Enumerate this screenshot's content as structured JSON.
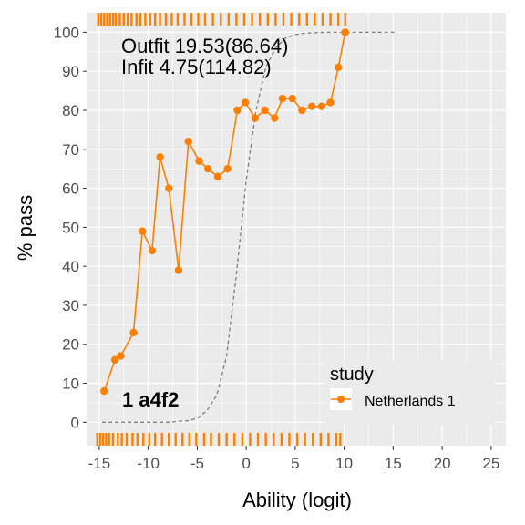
{
  "chart_data": {
    "type": "line",
    "xlabel": "Ability (logit)",
    "ylabel": "% pass",
    "xlim": [
      -16.2,
      26.5
    ],
    "ylim": [
      -6,
      105
    ],
    "x_ticks": [
      -15,
      -10,
      -5,
      0,
      5,
      10,
      15,
      20,
      25
    ],
    "x_tick_labels": [
      "-15",
      "-10",
      "-5",
      "0",
      "5",
      "10",
      "15",
      "20",
      "25"
    ],
    "y_ticks": [
      0,
      10,
      20,
      30,
      40,
      50,
      60,
      70,
      80,
      90,
      100
    ],
    "y_tick_labels": [
      "0",
      "10",
      "20",
      "30",
      "40",
      "50",
      "60",
      "70",
      "80",
      "90",
      "100"
    ],
    "grid": true,
    "legend_title": "study",
    "legend_position": "right",
    "annotations": {
      "outfit": "Outfit 19.53(86.64)",
      "infit": "Infit  4.75(114.82)",
      "item": "1  a4f2"
    },
    "colors": {
      "series": "#FF7F00",
      "panel": "#EBEBEB",
      "grid": "#FFFFFF",
      "model_curve": "#7F7F7F"
    },
    "series": [
      {
        "name": "Netherlands 1",
        "x": [
          -14.5,
          -13.4,
          -12.8,
          -11.5,
          -10.6,
          -9.6,
          -8.8,
          -7.9,
          -6.9,
          -5.9,
          -4.8,
          -3.9,
          -2.9,
          -1.9,
          -0.9,
          -0.1,
          0.9,
          1.9,
          2.9,
          3.7,
          4.7,
          5.7,
          6.7,
          7.7,
          8.6,
          9.4,
          10.1
        ],
        "y": [
          8,
          16,
          17,
          23,
          49,
          44,
          68,
          60,
          39,
          72,
          67,
          65,
          63,
          65,
          80,
          82,
          78,
          80,
          78,
          83,
          83,
          80,
          81,
          81,
          82,
          91,
          100
        ]
      }
    ],
    "model_curve": {
      "x": [
        -14.7,
        -10,
        -8,
        -6,
        -5,
        -4,
        -3,
        -2,
        -1,
        0,
        1,
        2,
        3,
        4,
        5,
        6,
        8,
        10,
        15.2
      ],
      "y": [
        0,
        0,
        0,
        0.4,
        1,
        3,
        7,
        17,
        38,
        62,
        80,
        91,
        96,
        98.5,
        99.4,
        99.8,
        100,
        100,
        100
      ]
    },
    "rug_top": [
      -15.1,
      -14.8,
      -14.5,
      -14.2,
      -13.9,
      -13.6,
      -13.3,
      -12.9,
      -12.5,
      -12.1,
      -11.7,
      -11.2,
      -10.8,
      -10.3,
      -9.8,
      -9.3,
      -8.8,
      -8.2,
      -7.6,
      -7.0,
      -6.3,
      -5.6,
      -4.9,
      -4.2,
      -3.4,
      -2.6,
      -1.8,
      -1.0,
      -0.2,
      0.6,
      1.4,
      2.2,
      3.0,
      3.8,
      4.6,
      5.4,
      6.2,
      7.0,
      7.8,
      8.6,
      9.4,
      10.1
    ],
    "rug_bottom": [
      -15.2,
      -14.9,
      -14.6,
      -14.3,
      -14.0,
      -13.6,
      -13.1,
      -12.7,
      -12.2,
      -11.6,
      -11.1,
      -10.5,
      -9.9,
      -9.3,
      -8.6,
      -7.9,
      -7.2,
      -6.5,
      -5.8,
      -5.1,
      -4.3,
      -3.6,
      -2.8,
      -2.0,
      -1.2,
      -0.4,
      0.4,
      1.2,
      2.0,
      2.8,
      3.6,
      4.4,
      5.2,
      6.0,
      6.8,
      7.6,
      8.4,
      9.2,
      9.6
    ]
  }
}
